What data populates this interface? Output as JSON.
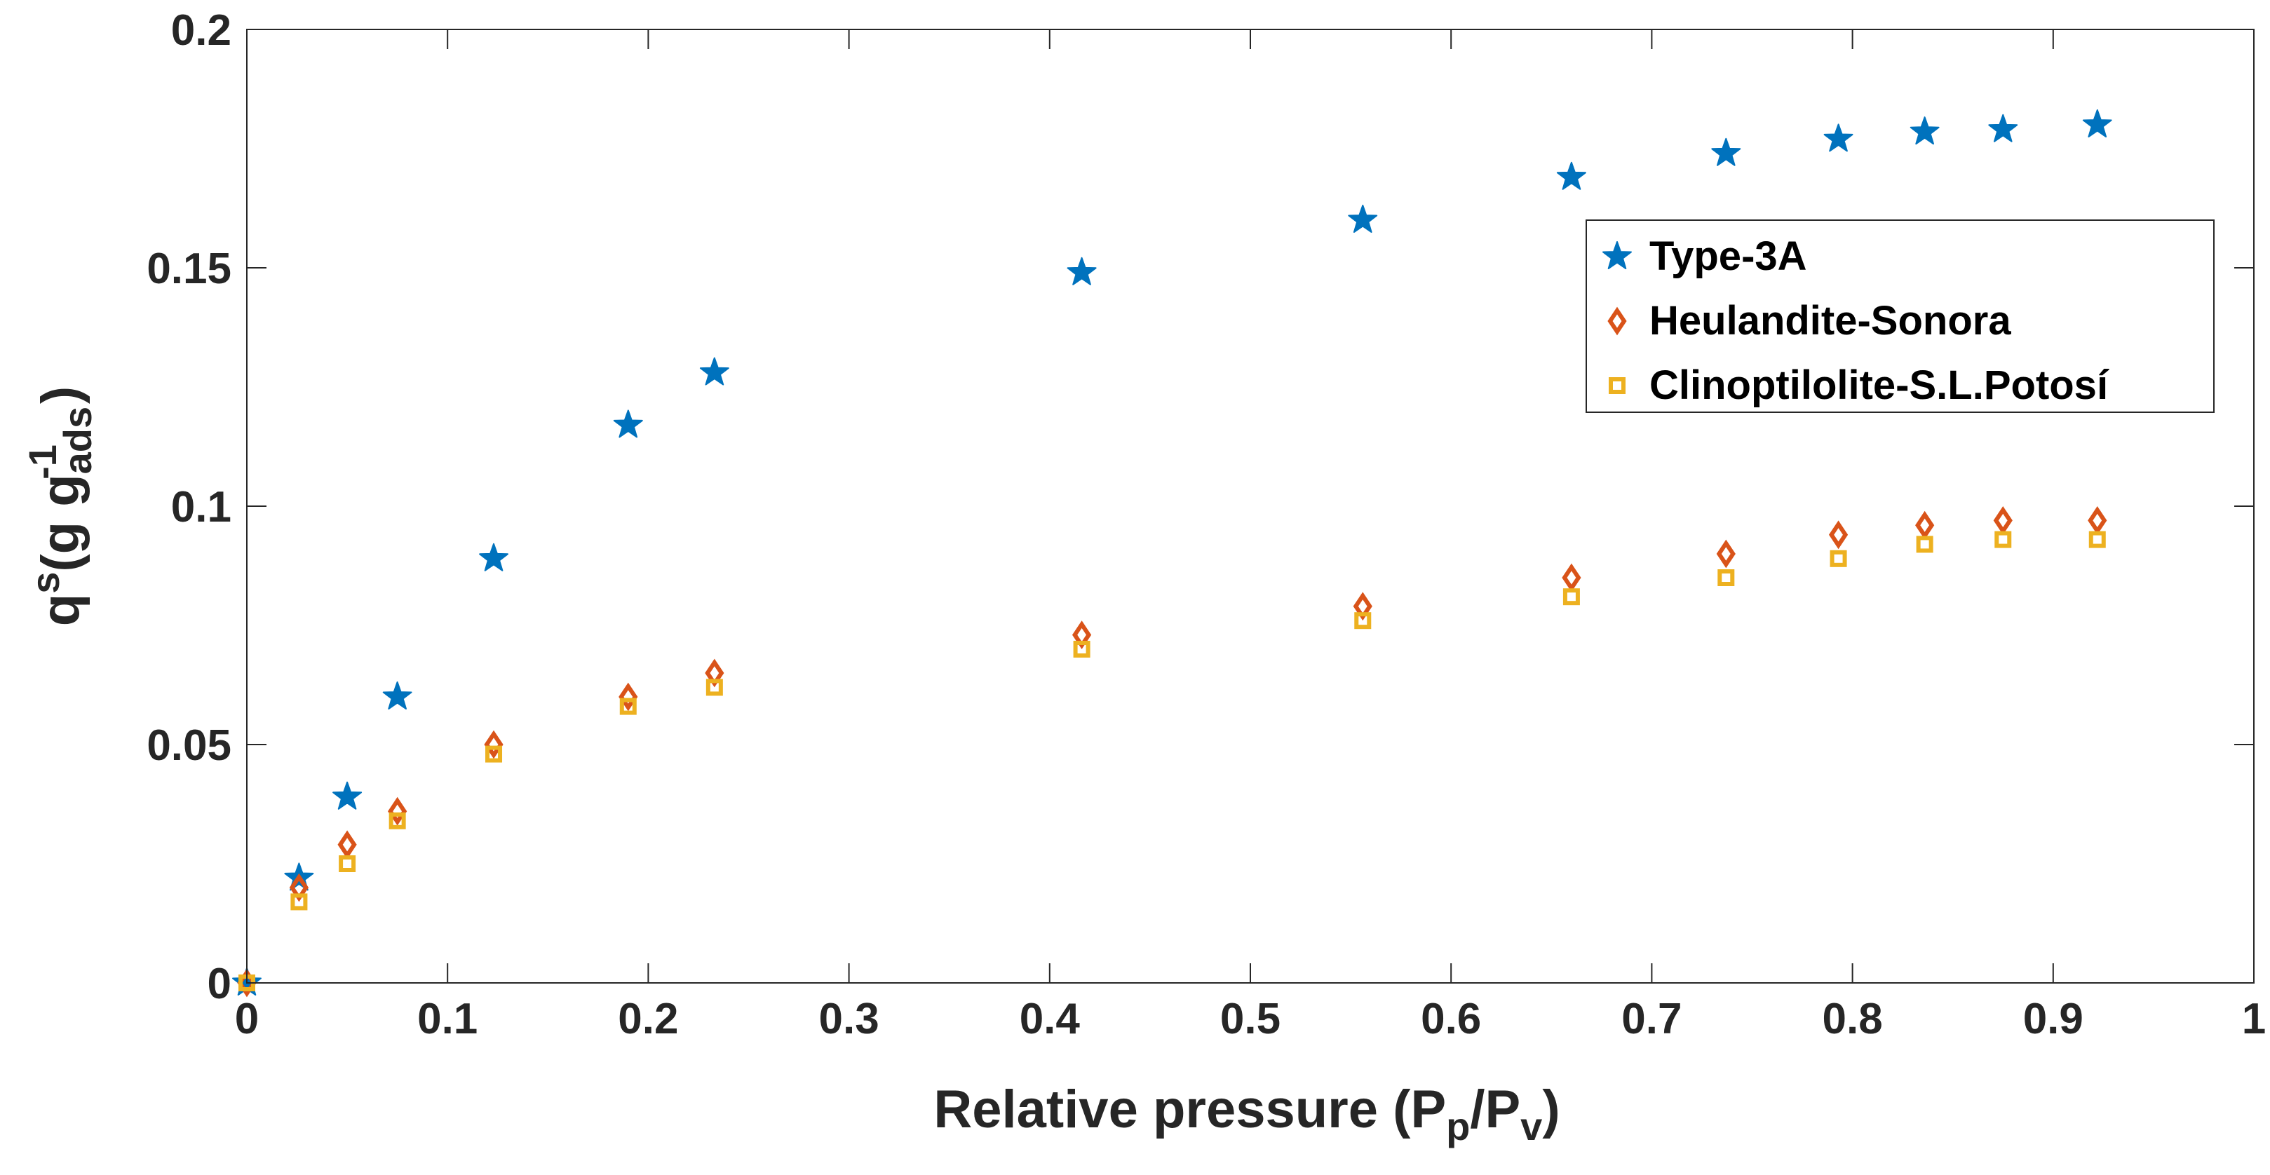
{
  "chart_data": {
    "type": "scatter",
    "title": "",
    "xlabel": {
      "main": "Relative pressure (P",
      "sub1": "p",
      "mid": "/P",
      "sub2": "v",
      "end": ")"
    },
    "ylabel": {
      "base": "q",
      "sup1": "s",
      "mid": "(g g",
      "sub": "ads",
      "sup2": "-1",
      "end": ")"
    },
    "xlim": [
      0,
      1
    ],
    "ylim": [
      0,
      0.2
    ],
    "x_ticks": [
      "0",
      "0.1",
      "0.2",
      "0.3",
      "0.4",
      "0.5",
      "0.6",
      "0.7",
      "0.8",
      "0.9",
      "1"
    ],
    "y_ticks": [
      "0",
      "0.05",
      "0.1",
      "0.15",
      "0.2"
    ],
    "grid": false,
    "legend_position": "top-right",
    "x": [
      0,
      0.026,
      0.05,
      0.075,
      0.123,
      0.19,
      0.233,
      0.416,
      0.556,
      0.66,
      0.737,
      0.793,
      0.836,
      0.875,
      0.922
    ],
    "series": [
      {
        "name": "Type-3A",
        "marker": "star",
        "color": "#0072BD",
        "values": [
          0,
          0.022,
          0.039,
          0.06,
          0.089,
          0.117,
          0.128,
          0.149,
          0.16,
          0.169,
          0.174,
          0.177,
          0.1785,
          0.179,
          0.18
        ]
      },
      {
        "name": "Heulandite-Sonora",
        "marker": "diamond",
        "color": "#D95319",
        "values": [
          0,
          0.02,
          0.029,
          0.036,
          0.05,
          0.06,
          0.065,
          0.073,
          0.079,
          0.085,
          0.09,
          0.094,
          0.096,
          0.097,
          0.097
        ]
      },
      {
        "name": "Clinoptilolite-S.L.Potosí",
        "marker": "square",
        "color": "#EDB120",
        "values": [
          0,
          0.017,
          0.025,
          0.034,
          0.048,
          0.058,
          0.062,
          0.07,
          0.076,
          0.081,
          0.085,
          0.089,
          0.092,
          0.093,
          0.093
        ]
      }
    ]
  }
}
